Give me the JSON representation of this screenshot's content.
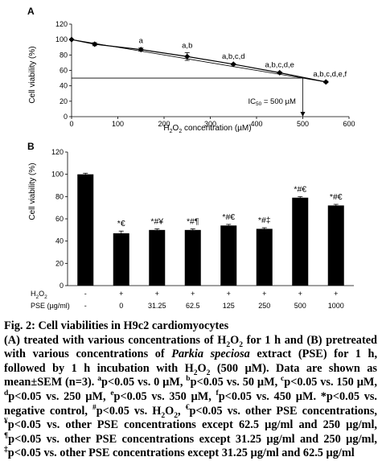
{
  "chart_data": [
    {
      "type": "line",
      "panel": "A",
      "xlabel_main": "H",
      "xlabel_sub": "2",
      "xlabel_tail": "O",
      "xlabel_sub2": "2",
      "xlabel_rest": " concentration (µM)",
      "ylabel": "Cell viability (%)",
      "xlim": [
        0,
        600
      ],
      "ylim": [
        0,
        120
      ],
      "x_ticks": [
        0,
        100,
        200,
        300,
        400,
        500,
        600
      ],
      "y_ticks": [
        0,
        20,
        40,
        60,
        80,
        100,
        120
      ],
      "x": [
        0,
        50,
        150,
        250,
        350,
        450,
        550
      ],
      "series": [
        {
          "values": [
            100,
            94,
            87,
            78,
            68,
            57,
            45
          ],
          "errors": [
            0,
            2,
            2,
            5,
            1,
            1,
            1
          ]
        }
      ],
      "point_labels": [
        "",
        "",
        "a",
        "a,b",
        "a,b,c,d",
        "a,b,c,d,e",
        "a,b,c,d,e,f"
      ],
      "trendline": {
        "x_start": 0,
        "y_start": 100,
        "x_end": 550,
        "y_end": 45
      },
      "ic50": {
        "label_pre": "IC",
        "label_sub": "50",
        "label_post": " = 500 µM",
        "x": 500,
        "y": 50
      }
    },
    {
      "type": "bar",
      "panel": "B",
      "ylabel": "Cell viability (%)",
      "ylim": [
        0,
        120
      ],
      "y_ticks": [
        0,
        20,
        40,
        60,
        80,
        100,
        120
      ],
      "h2o2_label": "H",
      "h2o2_sub": "2",
      "h2o2_tail": "O",
      "h2o2_sub2": "2",
      "pse_label": "PSE (µg/ml)",
      "h2o2_row": [
        "-",
        "+",
        "+",
        "+",
        "+",
        "+",
        "+",
        "+"
      ],
      "pse_row": [
        "-",
        "0",
        "31.25",
        "62.5",
        "125",
        "250",
        "500",
        "1000"
      ],
      "values": [
        100,
        47,
        50,
        50,
        54,
        51,
        79,
        72
      ],
      "errors": [
        1,
        2,
        1,
        1,
        1,
        1,
        1,
        1
      ],
      "bar_labels": [
        "",
        "*€",
        "*#¥",
        "*#¶",
        "*#€",
        "*#‡",
        "*#€",
        "*#€"
      ]
    }
  ],
  "caption": {
    "title": "Fig. 2: Cell viabilities in H9c2 cardiomyocytes",
    "a_1": "(A) treated with various concentrations of H",
    "a_2": "O",
    "a_3": " for 1 h and (B) pretreated with various concentrations of ",
    "a_italic": "Parkia speciosa",
    "a_4": " extract (PSE) for 1 h, followed by 1 h incubation with H",
    "a_5": "O",
    "a_6": " (500 µM). Data are shown as mean±SEM (n=3). ",
    "s_a": "a",
    "t_a": "p<0.05 vs. 0 µM, ",
    "s_b": "b",
    "t_b": "p<0.05 vs. 50 µM, ",
    "s_c": "c",
    "t_c": "p<0.05 vs. 150 µM, ",
    "s_d": "d",
    "t_d": "p<0.05 vs. 250 µM, ",
    "s_e": "e",
    "t_e": "p<0.05 vs. 350 µM, ",
    "s_f": "f",
    "t_f": "p<0.05 vs. 450 µM. *p<0.05 vs. negative control, ",
    "s_hash": "#",
    "t_hash_1": "p<0.05 vs. H",
    "t_hash_2": "O",
    "t_hash_3": ", ",
    "s_euro": "€",
    "t_euro": "p<0.05 vs. other PSE concentrations, ",
    "s_yen": "¥",
    "t_yen": "p<0.05 vs. other PSE concentrations except 62.5 µg/ml and 250 µg/ml, ",
    "s_para": "¶",
    "t_para": "p<0.05 vs. other PSE concentrations except 31.25 µg/ml and 250 µg/ml, ",
    "s_dagger": "‡",
    "t_dagger": "p<0.05 vs. other PSE concentrations except 31.25 µg/ml and 62.5 µg/ml",
    "sub_2": "2"
  }
}
